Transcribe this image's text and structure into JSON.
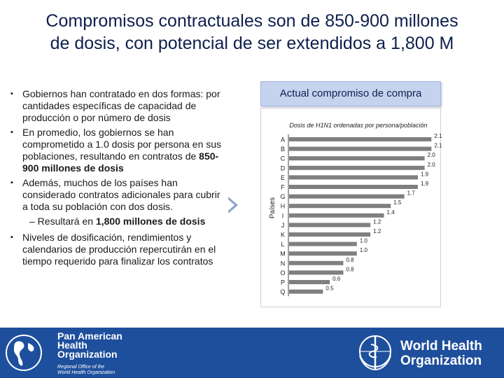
{
  "title": {
    "line1": "Compromisos contractuales son de 850-900 millones",
    "line2": "de dosis, con potencial de ser extendidos a 1,800 M"
  },
  "bullets": {
    "b1": "Gobiernos han contratado en dos formas: por cantidades específicas de capacidad de producción o por número de dosis",
    "b2_pre": "En promedio, los gobiernos se han comprometido a 1.0 dosis por persona en sus poblaciones, resultando en contratos de ",
    "b2_bold": "850-900 millones de dosis",
    "b3": "Además, muchos de los países han considerado contratos adicionales para cubrir a toda su población con dos dosis.",
    "sub_pre": "– Resultará en ",
    "sub_bold": "1,800 millones de dosis",
    "b4": "Niveles de dosificación, rendimientos y calendarios de producción repercutirán en el tiempo requerido para finalizar los contratos"
  },
  "chart_header": "Actual compromiso de compra",
  "chart_data": {
    "type": "bar",
    "orientation": "horizontal",
    "title": "Dosis de H1N1 ordenadas por persona/población",
    "xlabel": "",
    "ylabel": "Países",
    "categories": [
      "A",
      "B",
      "C",
      "D",
      "E",
      "F",
      "G",
      "H",
      "I",
      "J",
      "K",
      "L",
      "M",
      "N",
      "O",
      "P",
      "Q"
    ],
    "values": [
      2.1,
      2.1,
      2.0,
      2.0,
      1.9,
      1.9,
      1.7,
      1.5,
      1.4,
      1.2,
      1.2,
      1.0,
      1.0,
      0.8,
      0.8,
      0.6,
      0.5
    ],
    "labels": [
      "2.1",
      "2.1",
      "2.0",
      "2.0",
      "1.9",
      "1.9",
      "1.7",
      "1.5",
      "1.4",
      "1.2",
      "1.2",
      "1.0",
      "1.0",
      "0.8",
      "0.8",
      "0.6",
      "0.5"
    ],
    "xlim": [
      0,
      2.2
    ],
    "bar_color": "#7f7f7f"
  },
  "footer": {
    "paho_line1": "Pan American",
    "paho_line2": "Health",
    "paho_line3": "Organization",
    "paho_sub1": "Regional Office of the",
    "paho_sub2": "World Health Organization",
    "who_line1": "World Health",
    "who_line2": "Organization",
    "bg_color": "#1e4f9c"
  }
}
